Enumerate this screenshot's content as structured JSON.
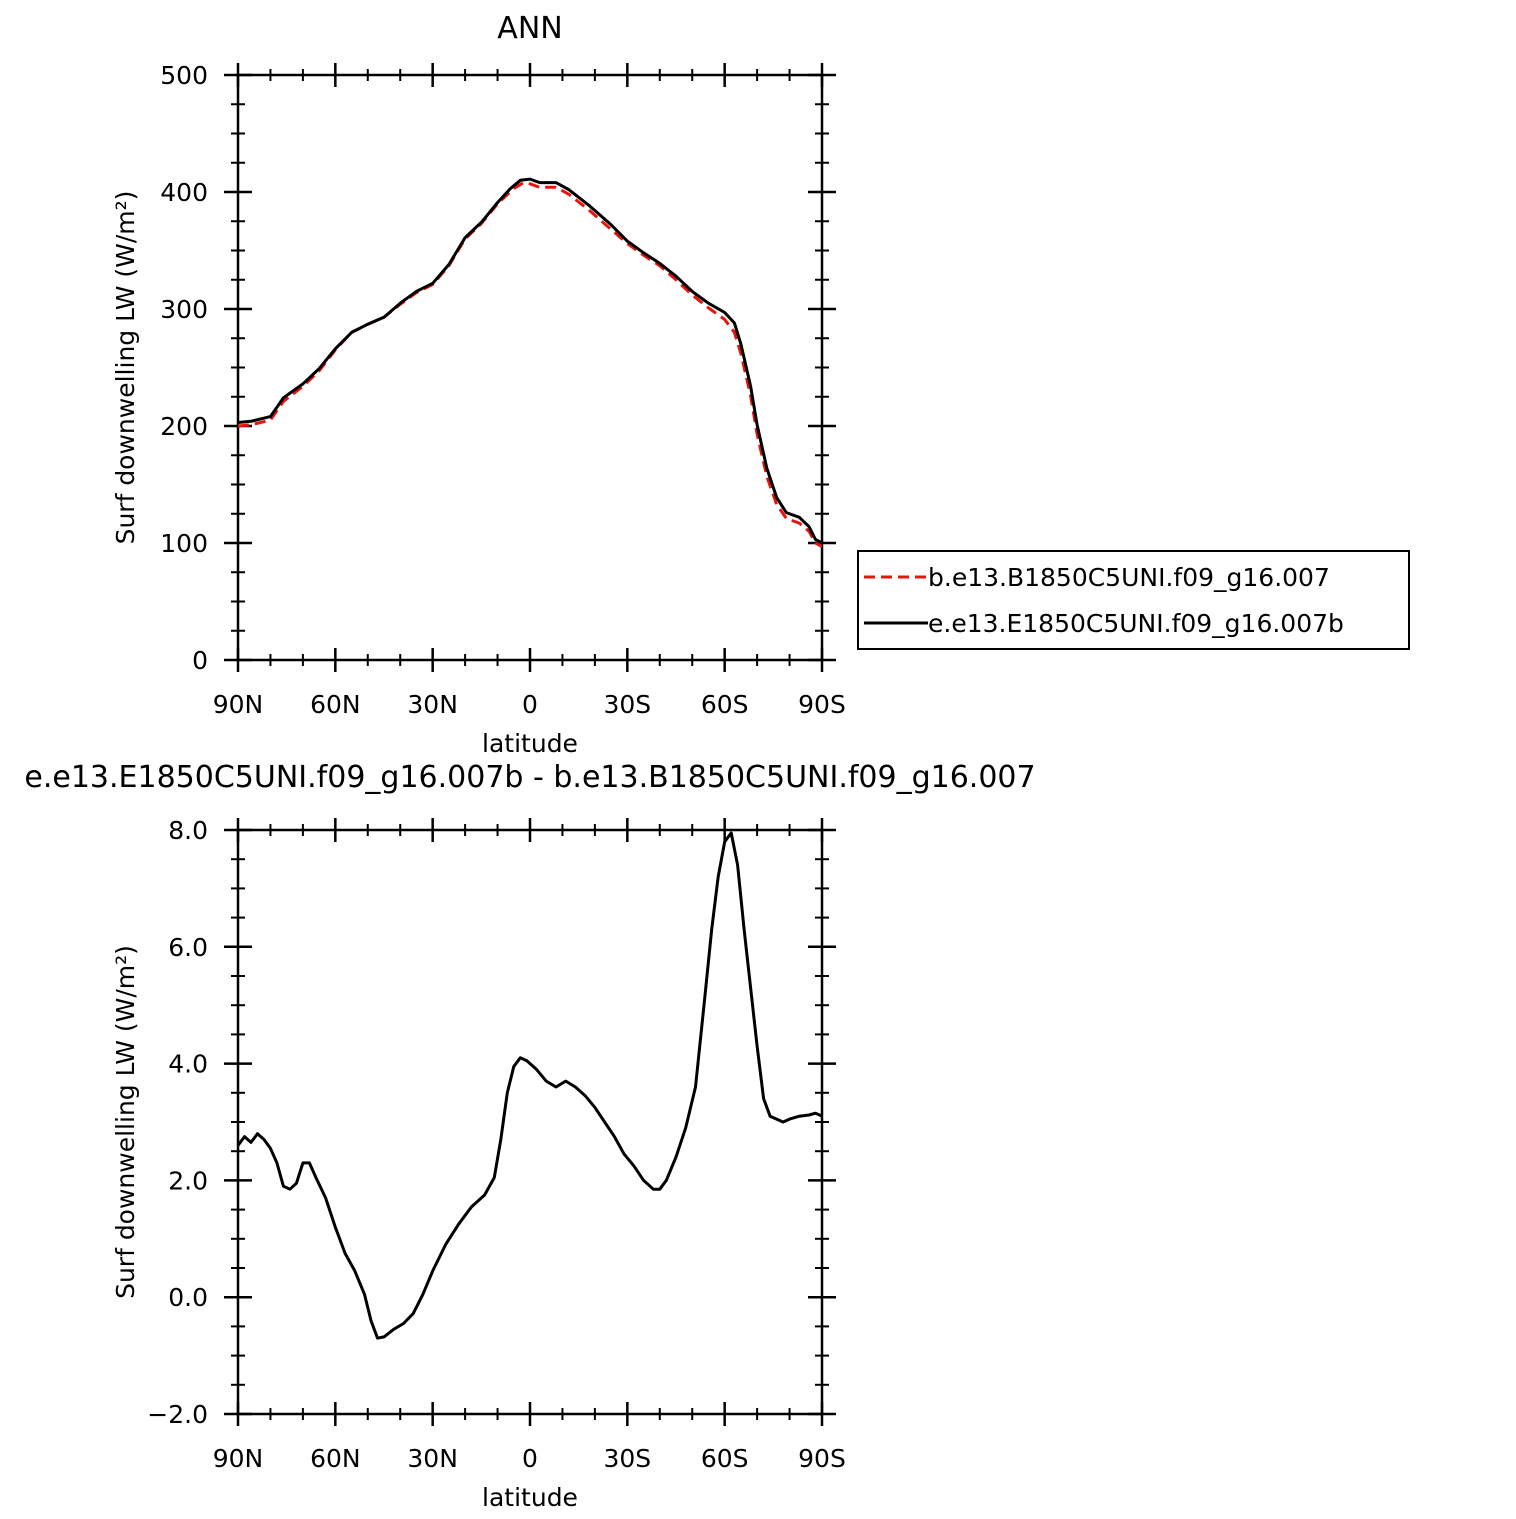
{
  "colors": {
    "control": "#e8150e",
    "test": "#000000",
    "axes": "#000000",
    "background": "#ffffff"
  },
  "chart_data": [
    {
      "type": "line",
      "title": "ANN",
      "xlabel": "latitude",
      "ylabel": "Surf downwelling LW (W/m²)",
      "xlim": [
        90,
        -90
      ],
      "ylim": [
        0,
        500
      ],
      "x_ticks": [
        {
          "value": 90,
          "label": "90N"
        },
        {
          "value": 60,
          "label": "60N"
        },
        {
          "value": 30,
          "label": "30N"
        },
        {
          "value": 0,
          "label": "0"
        },
        {
          "value": -30,
          "label": "30S"
        },
        {
          "value": -60,
          "label": "60S"
        },
        {
          "value": -90,
          "label": "90S"
        }
      ],
      "y_ticks": [
        {
          "value": 0,
          "label": "0"
        },
        {
          "value": 100,
          "label": "100"
        },
        {
          "value": 200,
          "label": "200"
        },
        {
          "value": 300,
          "label": "300"
        },
        {
          "value": 400,
          "label": "400"
        },
        {
          "value": 500,
          "label": "500"
        }
      ],
      "legend": {
        "placement": "right",
        "entries": [
          {
            "label": "b.e13.B1850C5UNI.f09_g16.007",
            "series": 0
          },
          {
            "label": "e.e13.E1850C5UNI.f09_g16.007b",
            "series": 1
          }
        ]
      },
      "series": [
        {
          "name": "b.e13.B1850C5UNI.f09_g16.007",
          "style": "dashed",
          "color": "#e8150e",
          "points": [
            [
              90,
              200
            ],
            [
              86,
              201
            ],
            [
              80,
              205
            ],
            [
              76,
              221
            ],
            [
              70,
              234
            ],
            [
              65,
              247
            ],
            [
              60,
              265
            ],
            [
              55,
              280
            ],
            [
              50,
              287
            ],
            [
              45,
              293
            ],
            [
              40,
              304
            ],
            [
              35,
              314
            ],
            [
              30,
              321
            ],
            [
              25,
              337
            ],
            [
              20,
              360
            ],
            [
              15,
              373
            ],
            [
              10,
              390
            ],
            [
              5,
              403
            ],
            [
              2,
              408
            ],
            [
              0,
              407
            ],
            [
              -3,
              404
            ],
            [
              -8,
              404
            ],
            [
              -12,
              398
            ],
            [
              -18,
              385
            ],
            [
              -25,
              368
            ],
            [
              -30,
              356
            ],
            [
              -35,
              346
            ],
            [
              -40,
              337
            ],
            [
              -45,
              325
            ],
            [
              -50,
              312
            ],
            [
              -55,
              301
            ],
            [
              -60,
              291
            ],
            [
              -63,
              280
            ],
            [
              -65,
              262
            ],
            [
              -68,
              226
            ],
            [
              -70,
              193
            ],
            [
              -73,
              157
            ],
            [
              -76,
              133
            ],
            [
              -79,
              121
            ],
            [
              -83,
              117
            ],
            [
              -86,
              110
            ],
            [
              -88,
              100
            ],
            [
              -90,
              97
            ]
          ]
        },
        {
          "name": "e.e13.E1850C5UNI.f09_g16.007b",
          "style": "solid",
          "color": "#000000",
          "points": [
            [
              90,
              203
            ],
            [
              86,
              204
            ],
            [
              80,
              208
            ],
            [
              76,
              224
            ],
            [
              70,
              236
            ],
            [
              65,
              249
            ],
            [
              60,
              266
            ],
            [
              55,
              280
            ],
            [
              50,
              287
            ],
            [
              45,
              293
            ],
            [
              40,
              305
            ],
            [
              35,
              315
            ],
            [
              30,
              322
            ],
            [
              25,
              338
            ],
            [
              20,
              361
            ],
            [
              15,
              374
            ],
            [
              10,
              391
            ],
            [
              6,
              403
            ],
            [
              3,
              410
            ],
            [
              0,
              411
            ],
            [
              -3,
              408
            ],
            [
              -8,
              408
            ],
            [
              -12,
              402
            ],
            [
              -18,
              389
            ],
            [
              -25,
              372
            ],
            [
              -30,
              358
            ],
            [
              -35,
              348
            ],
            [
              -40,
              339
            ],
            [
              -45,
              328
            ],
            [
              -50,
              315
            ],
            [
              -55,
              305
            ],
            [
              -60,
              297
            ],
            [
              -63,
              288
            ],
            [
              -65,
              270
            ],
            [
              -68,
              234
            ],
            [
              -70,
              201
            ],
            [
              -73,
              164
            ],
            [
              -76,
              139
            ],
            [
              -79,
              126
            ],
            [
              -83,
              122
            ],
            [
              -86,
              114
            ],
            [
              -88,
              103
            ],
            [
              -90,
              100
            ]
          ]
        }
      ]
    },
    {
      "type": "line",
      "title": "e.e13.E1850C5UNI.f09_g16.007b - b.e13.B1850C5UNI.f09_g16.007",
      "xlabel": "latitude",
      "ylabel": "Surf downwelling LW (W/m²)",
      "xlim": [
        90,
        -90
      ],
      "ylim": [
        -2.0,
        8.0
      ],
      "x_ticks": [
        {
          "value": 90,
          "label": "90N"
        },
        {
          "value": 60,
          "label": "60N"
        },
        {
          "value": 30,
          "label": "30N"
        },
        {
          "value": 0,
          "label": "0"
        },
        {
          "value": -30,
          "label": "30S"
        },
        {
          "value": -60,
          "label": "60S"
        },
        {
          "value": -90,
          "label": "90S"
        }
      ],
      "y_ticks": [
        {
          "value": -2.0,
          "label": "−2.0"
        },
        {
          "value": 0.0,
          "label": "0.0"
        },
        {
          "value": 2.0,
          "label": "2.0"
        },
        {
          "value": 4.0,
          "label": "4.0"
        },
        {
          "value": 6.0,
          "label": "6.0"
        },
        {
          "value": 8.0,
          "label": "8.0"
        }
      ],
      "series": [
        {
          "style": "solid",
          "color": "#000000",
          "points": [
            [
              90,
              2.6
            ],
            [
              88,
              2.75
            ],
            [
              86,
              2.65
            ],
            [
              84,
              2.8
            ],
            [
              82,
              2.7
            ],
            [
              80,
              2.55
            ],
            [
              78,
              2.3
            ],
            [
              76,
              1.9
            ],
            [
              74,
              1.85
            ],
            [
              72,
              1.95
            ],
            [
              70,
              2.3
            ],
            [
              68,
              2.3
            ],
            [
              66,
              2.05
            ],
            [
              63,
              1.7
            ],
            [
              60,
              1.2
            ],
            [
              57,
              0.75
            ],
            [
              54,
              0.45
            ],
            [
              51,
              0.05
            ],
            [
              49,
              -0.4
            ],
            [
              47,
              -0.7
            ],
            [
              45,
              -0.68
            ],
            [
              42,
              -0.55
            ],
            [
              39,
              -0.45
            ],
            [
              36,
              -0.28
            ],
            [
              33,
              0.05
            ],
            [
              30,
              0.45
            ],
            [
              26,
              0.9
            ],
            [
              22,
              1.25
            ],
            [
              18,
              1.55
            ],
            [
              14,
              1.75
            ],
            [
              11,
              2.05
            ],
            [
              9,
              2.7
            ],
            [
              7,
              3.5
            ],
            [
              5,
              3.95
            ],
            [
              3,
              4.1
            ],
            [
              1,
              4.05
            ],
            [
              -2,
              3.9
            ],
            [
              -5,
              3.7
            ],
            [
              -8,
              3.6
            ],
            [
              -11,
              3.7
            ],
            [
              -14,
              3.6
            ],
            [
              -17,
              3.45
            ],
            [
              -20,
              3.25
            ],
            [
              -23,
              3.0
            ],
            [
              -26,
              2.75
            ],
            [
              -29,
              2.45
            ],
            [
              -32,
              2.25
            ],
            [
              -35,
              2.0
            ],
            [
              -38,
              1.85
            ],
            [
              -40,
              1.85
            ],
            [
              -42,
              2.0
            ],
            [
              -45,
              2.4
            ],
            [
              -48,
              2.9
            ],
            [
              -51,
              3.6
            ],
            [
              -54,
              5.2
            ],
            [
              -56,
              6.3
            ],
            [
              -58,
              7.2
            ],
            [
              -60,
              7.8
            ],
            [
              -62,
              7.95
            ],
            [
              -64,
              7.4
            ],
            [
              -66,
              6.3
            ],
            [
              -68,
              5.3
            ],
            [
              -70,
              4.3
            ],
            [
              -72,
              3.4
            ],
            [
              -74,
              3.1
            ],
            [
              -76,
              3.05
            ],
            [
              -78,
              3.0
            ],
            [
              -80,
              3.05
            ],
            [
              -83,
              3.1
            ],
            [
              -86,
              3.12
            ],
            [
              -88,
              3.15
            ],
            [
              -90,
              3.1
            ]
          ]
        }
      ]
    }
  ]
}
